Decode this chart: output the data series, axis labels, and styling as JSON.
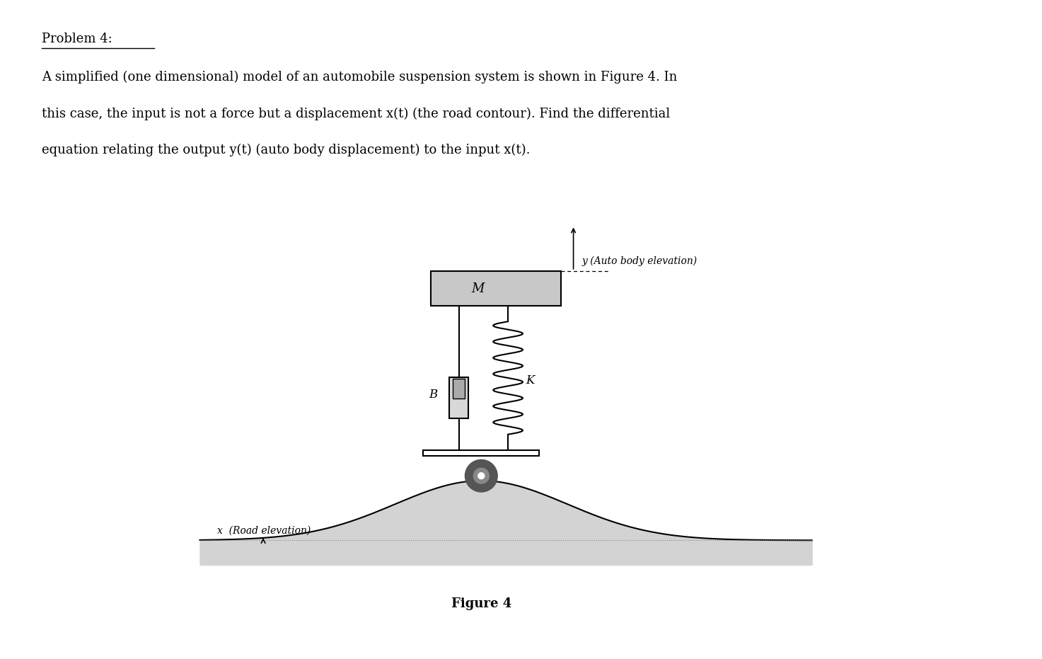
{
  "title": "Problem 4:",
  "text_line1": "A simplified (one dimensional) model of an automobile suspension system is shown in Figure 4. In",
  "text_line2": "this case, the input is not a force but a displacement x(t) (the road contour). Find the differential",
  "text_line3": "equation relating the output y(t) (auto body displacement) to the input x(t).",
  "figure_caption": "Figure 4",
  "label_M": "M",
  "label_B": "B",
  "label_K": "K",
  "label_y": "y (Auto body elevation)",
  "label_x": "x  (Road elevation)",
  "bg_color": "#ffffff",
  "mass_color": "#c8c8c8",
  "road_color": "#d3d3d3",
  "road_outline": "#000000",
  "fig_width": 14.73,
  "fig_height": 9.31,
  "dpi": 100
}
